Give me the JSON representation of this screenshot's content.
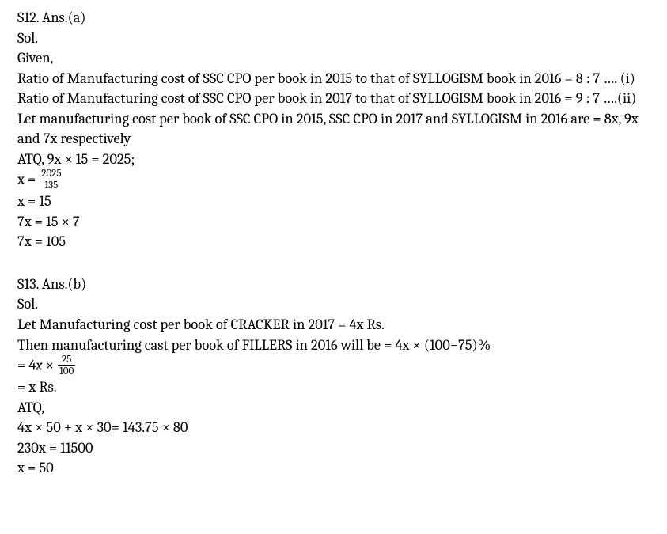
{
  "s12": {
    "header": "S12. Ans.(a)",
    "sol": "Sol.",
    "given": "Given,",
    "l1": "Ratio of Manufacturing cost of SSC CPO per book in 2015 to that of SYLLOGISM book in 2016 = 8 : 7 …. (i)",
    "l2": "Ratio of Manufacturing cost of SSC CPO per book in 2017 to that of SYLLOGISM book in 2016 = 9 : 7 ….(ii)",
    "l3": "Let manufacturing cost per book of SSC CPO in 2015, SSC CPO in 2017 and SYLLOGISM in 2016 are = 8x, 9x and 7x respectively",
    "l4": "ATQ, 9x × 15 = 2025;",
    "l5_pre": "x = ",
    "frac1_num": "2025",
    "frac1_den": "135",
    "l6": "x = 15",
    "l7": "7x = 15 × 7",
    "l8": "7x = 105"
  },
  "s13": {
    "header": "S13. Ans.(b)",
    "sol": "Sol.",
    "l1": "Let Manufacturing cost per book of CRACKER in 2017 = 4x Rs.",
    "l2": "Then manufacturing cast per book of FILLERS in 2016 will be = 4x × (100−75)%",
    "l3_pre": "= 4",
    "l3_var": "x",
    "l3_mid": " × ",
    "frac2_num": "25",
    "frac2_den": "100",
    "l4": "= x Rs.",
    "l5": "ATQ,",
    "l6": "4x × 50 + x × 30= 143.75 × 80",
    "l7": "230x = 11500",
    "l8": "x = 50"
  }
}
